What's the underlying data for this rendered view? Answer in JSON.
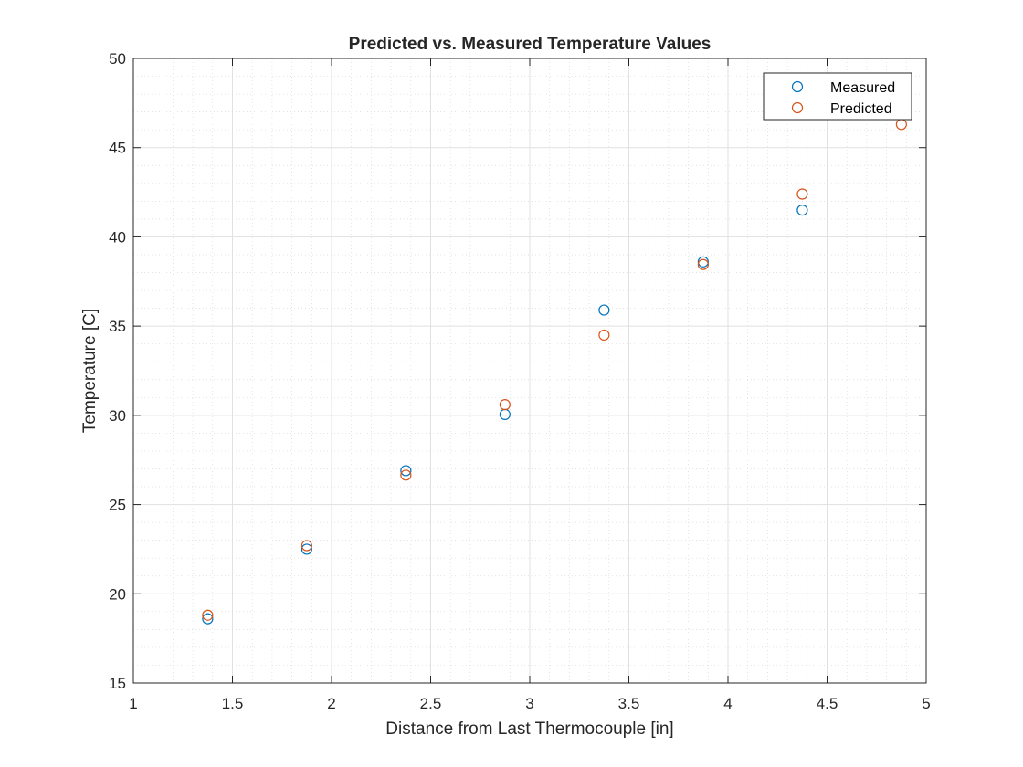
{
  "chart_data": {
    "type": "scatter",
    "title": "Predicted vs. Measured Temperature Values",
    "xlabel": "Distance from Last Thermocouple [in]",
    "ylabel": "Temperature [C]",
    "xlim": [
      1,
      5
    ],
    "ylim": [
      15,
      50
    ],
    "xticks": [
      "1",
      "1.5",
      "2",
      "2.5",
      "3",
      "3.5",
      "4",
      "4.5",
      "5"
    ],
    "yticks": [
      "15",
      "20",
      "25",
      "30",
      "35",
      "40",
      "45",
      "50"
    ],
    "grid": true,
    "minor_grid": true,
    "legend_position": "top-right",
    "series": [
      {
        "name": "Measured",
        "color": "#0072BD",
        "marker": "circle-open",
        "x": [
          1.375,
          1.875,
          2.375,
          2.875,
          3.375,
          3.875,
          4.375
        ],
        "y": [
          18.6,
          22.5,
          26.9,
          30.05,
          35.9,
          38.6,
          41.5
        ]
      },
      {
        "name": "Predicted",
        "color": "#D95319",
        "marker": "circle-open",
        "x": [
          1.375,
          1.875,
          2.375,
          2.875,
          3.375,
          3.875,
          4.375,
          4.875
        ],
        "y": [
          18.8,
          22.7,
          26.65,
          30.6,
          34.5,
          38.45,
          42.4,
          46.3
        ]
      }
    ]
  }
}
